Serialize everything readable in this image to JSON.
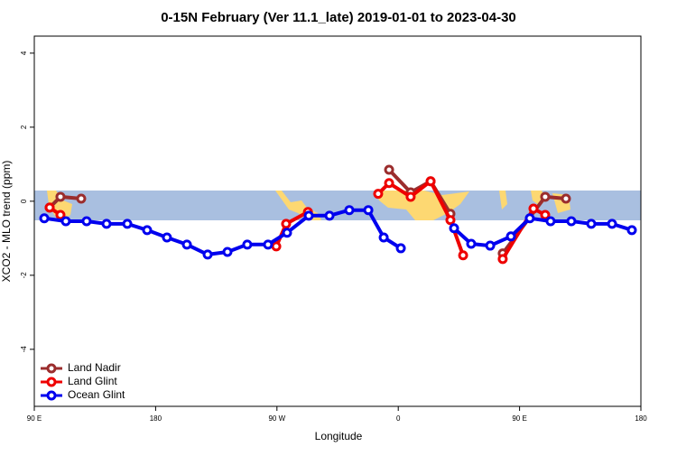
{
  "chart_data": {
    "type": "line",
    "title": "0-15N February (Ver 11.1_late)   2019-01-01 to 2023-04-30",
    "x_label": "Longitude",
    "y_label": "XCO2 - MLO trend (ppm)",
    "xlim": [
      90,
      540
    ],
    "xticks": [
      {
        "value": 90,
        "label": "90 E"
      },
      180,
      {
        "value": 270,
        "label": "90 W"
      },
      {
        "value": 360,
        "label": "0"
      },
      {
        "value": 450,
        "label": "90 E"
      },
      {
        "value": 540,
        "label": "180"
      }
    ],
    "ylim": [
      -5.54,
      4.46
    ],
    "yticks": [
      4,
      2,
      0,
      -2,
      -4
    ],
    "legend": "bottom-left",
    "series": [
      {
        "name": "Land Nadir",
        "color": "#9b2d2d",
        "x": [
          101.4,
          109.4,
          124.8,
          240,
          353.2,
          369.2,
          384,
          398.7,
          420,
          437.5,
          469,
          484.4
        ],
        "values": [
          -0.17,
          0.12,
          0.07,
          null,
          0.85,
          0.24,
          0.54,
          -0.34,
          null,
          -1.41,
          0.12,
          0.07
        ]
      },
      {
        "name": "Land Glint",
        "color": "#ee0000",
        "x": [
          101.4,
          109.4,
          200,
          269.5,
          276.8,
          293,
          320,
          345.1,
          353.2,
          369.2,
          384,
          398.7,
          408.1,
          420,
          437.5,
          460.3,
          469
        ],
        "values": [
          -0.17,
          -0.37,
          null,
          -1.22,
          -0.61,
          -0.29,
          null,
          0.2,
          0.49,
          0.12,
          0.54,
          -0.51,
          -1.46,
          null,
          -1.56,
          -0.2,
          -0.37
        ]
      },
      {
        "name": "Ocean Glint",
        "color": "#0000ee",
        "x": [
          97.4,
          113.4,
          128.8,
          143.6,
          159,
          173.7,
          188.4,
          203.2,
          218.6,
          233.3,
          248,
          263.4,
          277.5,
          293.6,
          309,
          323.7,
          337.8,
          349.2,
          361.9,
          380,
          401.4,
          414.1,
          428.2,
          443.6,
          457.6,
          473,
          488.4,
          503.2,
          518.6,
          533.3
        ],
        "values": [
          -0.46,
          -0.54,
          -0.54,
          -0.61,
          -0.61,
          -0.78,
          -0.98,
          -1.17,
          -1.44,
          -1.37,
          -1.17,
          -1.17,
          -0.85,
          -0.39,
          -0.39,
          -0.24,
          -0.24,
          -0.98,
          -1.27,
          null,
          -0.73,
          -1.15,
          -1.2,
          -0.95,
          -0.46,
          -0.54,
          -0.54,
          -0.61,
          -0.61,
          -0.78
        ]
      }
    ]
  }
}
